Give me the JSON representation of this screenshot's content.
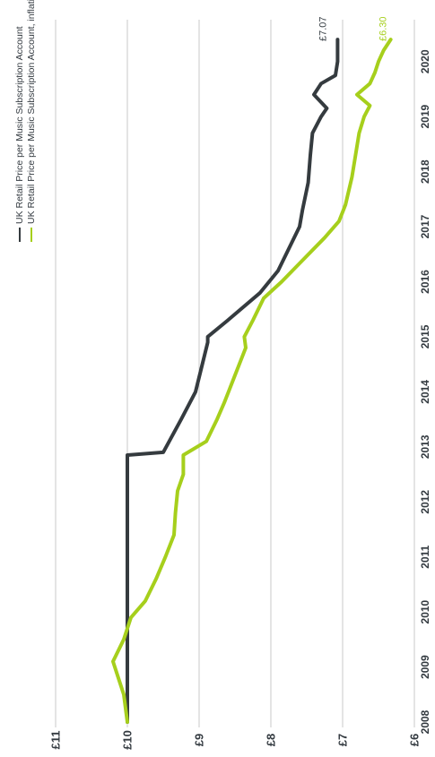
{
  "chart_data": {
    "type": "line",
    "orientation": "rotated-90-clockwise",
    "x_axis": {
      "ticks": [
        "2008",
        "2009",
        "2010",
        "2011",
        "2012",
        "2013",
        "2014",
        "2015",
        "2016",
        "2017",
        "2018",
        "2019",
        "2020"
      ],
      "range": [
        2008,
        2020.5
      ]
    },
    "y_axis": {
      "ticks": [
        "£11",
        "£10",
        "£9",
        "£8",
        "£7",
        "£6"
      ],
      "tick_values": [
        11,
        10,
        9,
        8,
        7,
        6
      ],
      "range": [
        6,
        11
      ],
      "unit": "£"
    },
    "grid": "horizontal gridlines at each £ value",
    "legend_position": "top",
    "series": [
      {
        "name": "UK Retail Price per Music Subscription Account",
        "color": "#353b3f",
        "end_label": "£7.07",
        "points": [
          [
            2008.0,
            10.0
          ],
          [
            2009.0,
            10.0
          ],
          [
            2010.0,
            10.0
          ],
          [
            2011.0,
            10.0
          ],
          [
            2012.0,
            10.0
          ],
          [
            2012.85,
            10.0
          ],
          [
            2012.9,
            9.5
          ],
          [
            2013.5,
            9.25
          ],
          [
            2014.0,
            9.05
          ],
          [
            2014.9,
            8.88
          ],
          [
            2015.0,
            8.88
          ],
          [
            2015.3,
            8.6
          ],
          [
            2015.8,
            8.15
          ],
          [
            2016.2,
            7.9
          ],
          [
            2016.6,
            7.75
          ],
          [
            2017.0,
            7.6
          ],
          [
            2017.3,
            7.56
          ],
          [
            2017.8,
            7.48
          ],
          [
            2018.3,
            7.45
          ],
          [
            2018.7,
            7.42
          ],
          [
            2019.0,
            7.3
          ],
          [
            2019.15,
            7.22
          ],
          [
            2019.4,
            7.4
          ],
          [
            2019.6,
            7.3
          ],
          [
            2019.75,
            7.1
          ],
          [
            2020.0,
            7.07
          ],
          [
            2020.4,
            7.07
          ]
        ]
      },
      {
        "name": "UK Retail Price per Music Subscription Account, inflation adjusted",
        "color": "#a6cf1c",
        "end_label": "£6.30",
        "points": [
          [
            2008.0,
            10.0
          ],
          [
            2008.5,
            10.05
          ],
          [
            2009.1,
            10.2
          ],
          [
            2009.5,
            10.05
          ],
          [
            2009.9,
            9.95
          ],
          [
            2010.2,
            9.75
          ],
          [
            2010.6,
            9.6
          ],
          [
            2011.0,
            9.47
          ],
          [
            2011.4,
            9.35
          ],
          [
            2011.8,
            9.33
          ],
          [
            2012.2,
            9.3
          ],
          [
            2012.5,
            9.22
          ],
          [
            2012.85,
            9.22
          ],
          [
            2013.1,
            8.9
          ],
          [
            2013.5,
            8.75
          ],
          [
            2013.8,
            8.65
          ],
          [
            2014.3,
            8.5
          ],
          [
            2014.8,
            8.35
          ],
          [
            2015.0,
            8.37
          ],
          [
            2015.3,
            8.25
          ],
          [
            2015.7,
            8.1
          ],
          [
            2016.0,
            7.85
          ],
          [
            2016.4,
            7.55
          ],
          [
            2016.8,
            7.25
          ],
          [
            2017.1,
            7.05
          ],
          [
            2017.4,
            6.96
          ],
          [
            2017.9,
            6.87
          ],
          [
            2018.3,
            6.82
          ],
          [
            2018.7,
            6.77
          ],
          [
            2019.0,
            6.7
          ],
          [
            2019.2,
            6.62
          ],
          [
            2019.4,
            6.8
          ],
          [
            2019.6,
            6.62
          ],
          [
            2019.8,
            6.55
          ],
          [
            2020.0,
            6.5
          ],
          [
            2020.2,
            6.43
          ],
          [
            2020.4,
            6.33
          ]
        ]
      }
    ]
  }
}
